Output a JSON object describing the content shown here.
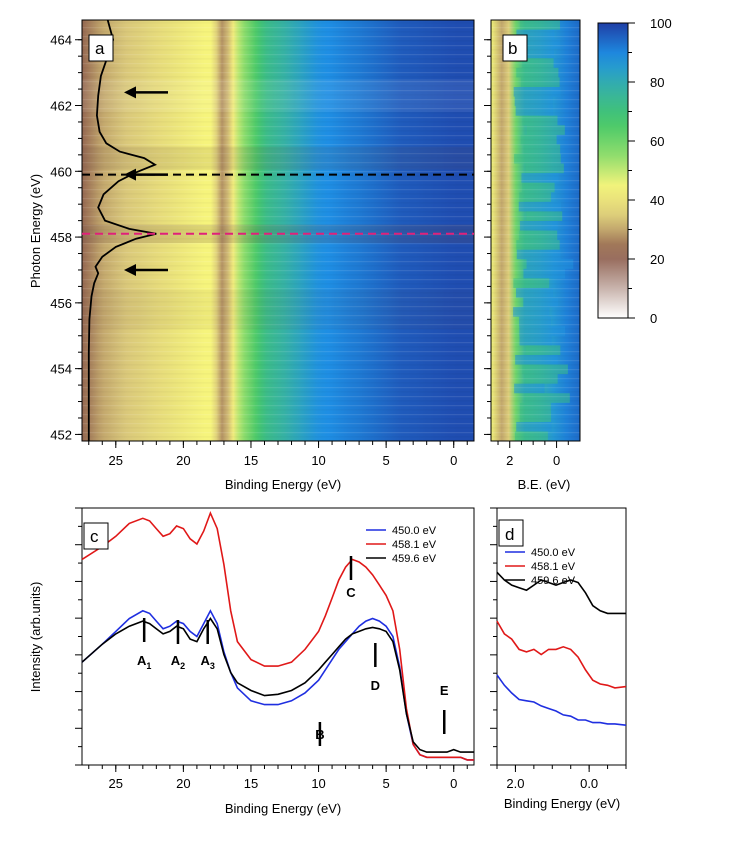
{
  "colors": {
    "blue": "#1f2fe0",
    "red": "#e01818",
    "black": "#000000",
    "dash_black": "#000000",
    "dash_magenta": "#e0207a",
    "cmap": [
      "#ffffff",
      "#c3aca4",
      "#8e5e4e",
      "#d9c77a",
      "#f6f47c",
      "#8cdc6c",
      "#44c76a",
      "#36b2a4",
      "#1e8fe4",
      "#1f3fa6"
    ]
  },
  "chart_data": [
    {
      "panel": "a",
      "type": "heatmap",
      "xlabel": "Binding Energy (eV)",
      "ylabel": "Photon Energy (eV)",
      "xlim": [
        27.5,
        -1.5
      ],
      "ylim": [
        451.8,
        464.6
      ],
      "x_ticks": [
        25,
        20,
        15,
        10,
        5,
        0
      ],
      "y_ticks": [
        452,
        454,
        456,
        458,
        460,
        462,
        464
      ],
      "profile_x": [
        0,
        4,
        10,
        14,
        16,
        17,
        18,
        22,
        26,
        30,
        33
      ],
      "profile_intensity": [
        98,
        96,
        88,
        72,
        50,
        25,
        45,
        38,
        30,
        12,
        30
      ],
      "absorption_curve": {
        "photon_energy": [
          451.8,
          452.5,
          453.5,
          454.5,
          455.5,
          456.2,
          456.6,
          456.9,
          457.1,
          457.4,
          457.7,
          457.95,
          458.1,
          458.25,
          458.5,
          458.9,
          459.3,
          459.7,
          459.95,
          460.2,
          460.4,
          460.6,
          460.85,
          461.2,
          461.7,
          462.3,
          462.9,
          463.5,
          464.0,
          464.3,
          464.6
        ],
        "binding_energy": [
          27.0,
          27.0,
          27.0,
          27.0,
          26.95,
          26.8,
          26.6,
          26.3,
          26.5,
          26.0,
          25.0,
          23.5,
          22.0,
          24.0,
          25.8,
          26.3,
          25.9,
          24.8,
          23.6,
          22.1,
          22.9,
          24.7,
          25.7,
          26.2,
          26.4,
          26.3,
          26.1,
          25.6,
          25.2,
          25.4,
          25.6
        ]
      },
      "arrows_photon_energy": [
        462.4,
        459.9,
        457.0
      ],
      "dashed_lines": [
        {
          "photon_energy": 459.9,
          "color": "black"
        },
        {
          "photon_energy": 458.1,
          "color": "magenta"
        }
      ]
    },
    {
      "panel": "b",
      "type": "heatmap",
      "xlabel": "B.E. (eV)",
      "xlim": [
        2.8,
        -1.0
      ],
      "ylim": [
        451.8,
        464.6
      ],
      "x_ticks": [
        2,
        0
      ]
    },
    {
      "panel": "colorbar",
      "type": "heatmap",
      "range": [
        0,
        100
      ],
      "ticks": [
        0,
        20,
        40,
        60,
        80,
        100
      ]
    },
    {
      "panel": "c",
      "type": "line",
      "xlabel": "Binding Energy (eV)",
      "ylabel": "Intensity (arb.units)",
      "xlim": [
        27.5,
        -1.5
      ],
      "ylim": [
        0,
        100
      ],
      "x_ticks": [
        25,
        20,
        15,
        10,
        5,
        0
      ],
      "legend": [
        "450.0 eV",
        "458.1 eV",
        "459.6 eV"
      ],
      "legend_placement": "top-right",
      "x": [
        27.5,
        26,
        25,
        24,
        23,
        22.5,
        22,
        21.5,
        21,
        20.5,
        20,
        19.5,
        19,
        18.5,
        18,
        17.5,
        17,
        16.5,
        16,
        15,
        14,
        13,
        12,
        11,
        10,
        9.5,
        9,
        8.5,
        8,
        7.5,
        7,
        6.5,
        6,
        5.5,
        5,
        4.5,
        4,
        3.5,
        3,
        2.5,
        2,
        1.5,
        1,
        0.5,
        0,
        -0.5,
        -1,
        -1.5
      ],
      "series": [
        {
          "name": "450.0 eV",
          "color": "blue",
          "values": [
            40,
            47,
            52,
            57,
            60,
            59,
            56,
            53,
            54,
            56,
            55,
            52,
            50,
            55,
            60,
            55,
            44,
            36,
            30,
            25,
            23.5,
            23.5,
            25,
            28,
            33,
            37,
            41,
            45,
            48,
            51,
            54,
            56,
            57,
            56,
            54,
            50,
            38,
            20,
            8,
            4,
            3,
            3,
            3,
            3,
            3,
            3,
            2,
            2
          ]
        },
        {
          "name": "458.1 eV",
          "color": "red",
          "values": [
            80,
            85,
            89,
            94,
            96,
            95,
            92,
            89,
            90,
            93,
            92,
            88,
            86,
            91,
            98,
            92,
            78,
            60,
            48,
            41,
            38.5,
            38.5,
            40,
            45,
            52,
            58,
            65,
            72,
            77,
            80,
            79,
            77,
            74,
            70,
            66,
            60,
            45,
            22,
            8,
            4,
            3,
            3,
            3,
            3,
            3,
            3,
            2,
            2
          ]
        },
        {
          "name": "459.6 eV",
          "color": "black",
          "values": [
            40,
            47,
            51,
            54,
            56,
            55,
            53,
            51,
            52,
            54,
            53,
            49,
            48,
            53,
            57,
            53,
            43,
            36,
            32,
            29,
            27,
            27.5,
            29,
            32,
            37,
            40,
            43,
            46,
            49,
            51,
            52,
            53,
            53.5,
            53,
            52,
            48,
            37,
            20,
            9,
            6,
            5,
            5,
            5,
            5,
            6,
            5,
            5,
            5
          ]
        }
      ],
      "annotations": [
        "A",
        "1",
        "A",
        "2",
        "A",
        "3",
        "B",
        "C",
        "D",
        "E"
      ]
    },
    {
      "panel": "d",
      "type": "line",
      "xlabel": "Binding Energy (eV)",
      "xlim": [
        2.5,
        -1.0
      ],
      "ylim": [
        0,
        100
      ],
      "x_ticks": [
        "2.0",
        "0.0"
      ],
      "legend": [
        "450.0 eV",
        "458.1 eV",
        "459.6 eV"
      ],
      "legend_placement": "top-left",
      "x": [
        2.5,
        2.3,
        2.1,
        1.9,
        1.7,
        1.5,
        1.3,
        1.1,
        0.9,
        0.7,
        0.5,
        0.3,
        0.1,
        -0.1,
        -0.3,
        -0.5,
        -0.7,
        -1.0
      ],
      "series": [
        {
          "name": "450.0 eV",
          "color": "blue",
          "values": [
            35,
            31,
            28,
            25.5,
            25,
            24.5,
            23,
            22,
            21,
            19.5,
            19,
            17.5,
            17.5,
            16.5,
            16.5,
            16,
            16,
            15.5
          ]
        },
        {
          "name": "458.1 eV",
          "color": "red",
          "values": [
            56,
            51,
            49,
            45,
            44,
            45,
            43,
            45,
            45,
            46,
            45,
            42,
            37,
            33,
            31.5,
            31,
            30,
            30.5
          ]
        },
        {
          "name": "459.6 eV",
          "color": "black",
          "values": [
            75,
            72,
            70,
            69,
            68,
            70,
            72,
            71,
            70,
            71,
            72,
            71,
            67,
            62,
            60,
            59,
            59,
            59
          ]
        }
      ]
    }
  ]
}
